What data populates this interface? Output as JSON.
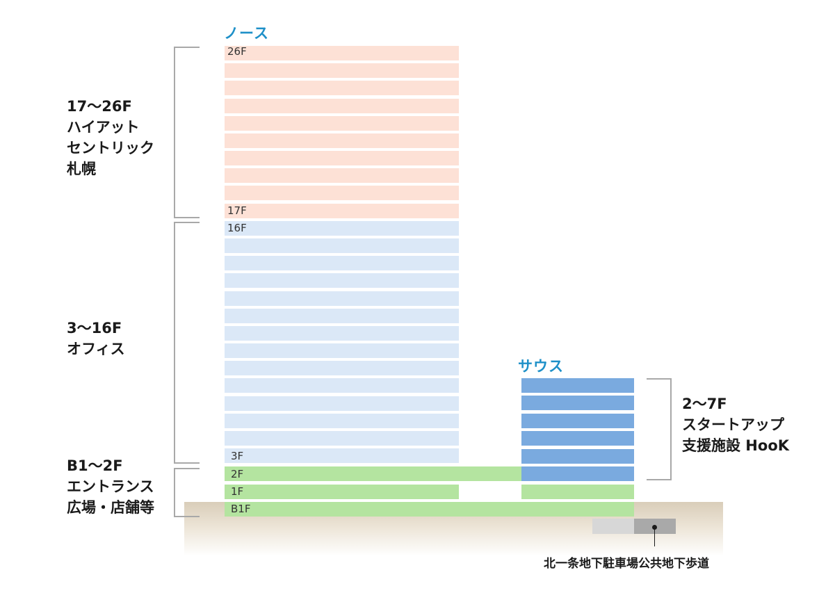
{
  "north": {
    "title": "ノース",
    "hotel_top_label": "26F",
    "hotel_bottom_label": "17F",
    "office_top_label": "16F",
    "office_bottom_label": "3F",
    "colors": {
      "hotel": "#fde1d6",
      "office": "#dbe8f7",
      "retail": "#b4e4a0"
    }
  },
  "south": {
    "title": "サウス",
    "colors": {
      "startup": "#7aaadf",
      "retail": "#b4e4a0"
    }
  },
  "podium": {
    "floor_2f": "2F",
    "floor_1f": "1F",
    "floor_b1f": "B1F"
  },
  "groups": {
    "hotel": [
      "17〜26F",
      "ハイアット",
      "セントリック",
      "札幌"
    ],
    "office": [
      "3〜16F",
      "オフィス"
    ],
    "retail": [
      "B1〜2F",
      "エントランス",
      "広場・店舗等"
    ],
    "startup": [
      "2〜7F",
      "スタートアップ",
      "支援施設 HooK"
    ]
  },
  "underground": {
    "caption": "北一条地下駐車場公共地下歩道"
  }
}
